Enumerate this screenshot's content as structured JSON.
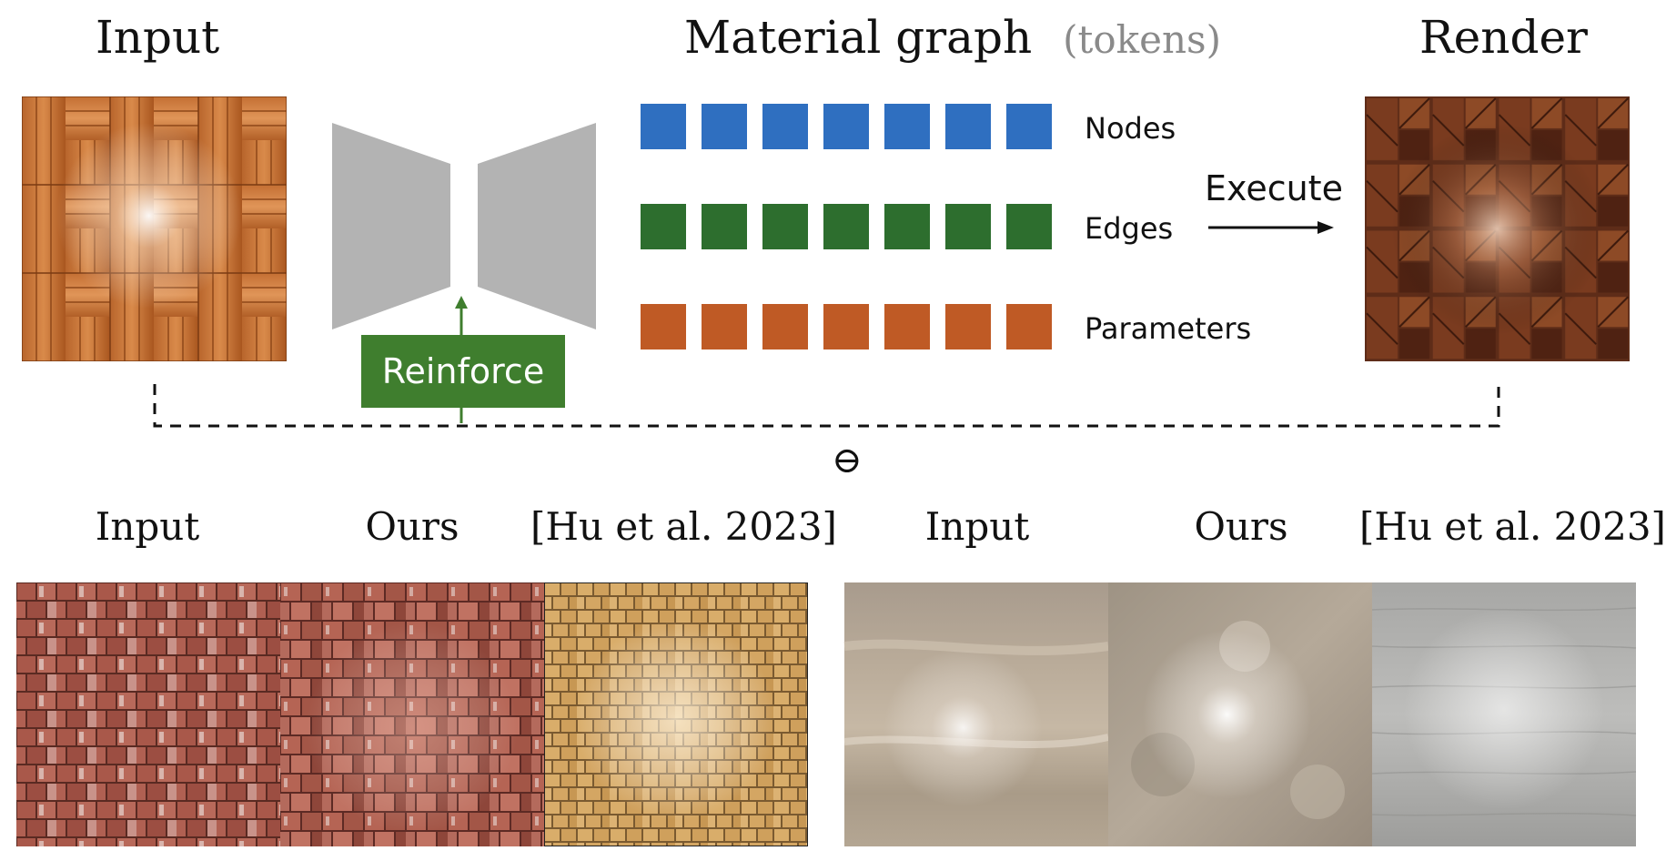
{
  "top": {
    "input_title": "Input",
    "graph_title": "Material graph",
    "graph_note": "(tokens)",
    "render_title": "Render",
    "rows": [
      {
        "label": "Nodes",
        "color": "#2f6fc0",
        "count": 7
      },
      {
        "label": "Edges",
        "color": "#2d6e2e",
        "count": 7
      },
      {
        "label": "Parameters",
        "color": "#bf5a25",
        "count": 7
      }
    ],
    "execute_label": "Execute",
    "reinforce_label": "Reinforce",
    "reinforce_color": "#3f7e2e",
    "network_color": "#b3b3b3",
    "minus_symbol": "⊖"
  },
  "bottom": {
    "left": {
      "labels": [
        "Input",
        "Ours",
        "[Hu et al. 2023]"
      ]
    },
    "right": {
      "labels": [
        "Input",
        "Ours",
        "[Hu et al. 2023]"
      ]
    }
  }
}
